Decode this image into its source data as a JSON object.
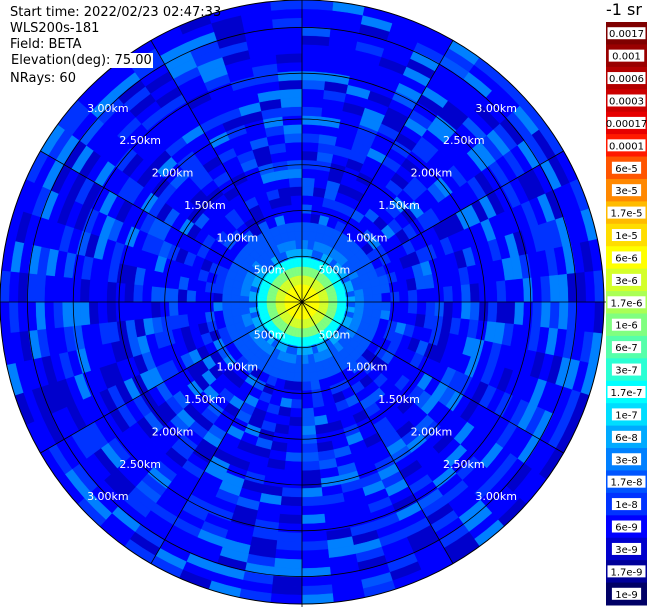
{
  "header": {
    "start_time": "Start time: 2022/02/23 02:47:33",
    "instrument": "WLS200s-181",
    "field": "Field: BETA",
    "elevation": "Elevation(deg): 75.00",
    "nrays": "NRays: 60"
  },
  "colorbar": {
    "unit_title": "-1 sr",
    "labels": [
      "0.0017",
      "0.001",
      "0.0006",
      "0.0003",
      "0.00017",
      "0.0001",
      "6e-5",
      "3e-5",
      "1.7e-5",
      "1e-5",
      "6e-6",
      "3e-6",
      "1.7e-6",
      "1e-6",
      "6e-7",
      "3e-7",
      "1.7e-7",
      "1e-7",
      "6e-8",
      "3e-8",
      "1.7e-8",
      "1e-8",
      "6e-9",
      "3e-9",
      "1.7e-9",
      "1e-9"
    ],
    "colors": [
      "#7f0000",
      "#990000",
      "#b30000",
      "#cc0000",
      "#e60000",
      "#ff1a00",
      "#ff5500",
      "#ff8800",
      "#ffbb00",
      "#ffdd00",
      "#ffff00",
      "#d4ff2a",
      "#aaff55",
      "#80ff80",
      "#55ffaa",
      "#2affd4",
      "#00ffff",
      "#00ddff",
      "#00aaff",
      "#0080ff",
      "#0055ff",
      "#0033ff",
      "#0000ff",
      "#0000cc",
      "#000099",
      "#000066"
    ]
  },
  "chart_data": {
    "type": "heatmap",
    "projection": "polar PPI",
    "range_rings_km": [
      0.5,
      1.0,
      1.5,
      2.0,
      2.5,
      3.0
    ],
    "ring_labels": [
      "500m",
      "1.00km",
      "1.50km",
      "2.00km",
      "2.50km",
      "3.00km"
    ],
    "azimuth_spokes_deg": [
      0,
      30,
      60,
      90,
      120,
      150,
      180,
      210,
      240,
      270,
      300,
      330
    ],
    "num_rays": 60,
    "max_range_km": 3.3,
    "value_profile": {
      "range_km": [
        0.0,
        0.15,
        0.25,
        0.35,
        0.45,
        0.55,
        0.7,
        1.0,
        3.3
      ],
      "color": [
        "#ffff00",
        "#d4ff2a",
        "#80ff80",
        "#00ffff",
        "#00aaff",
        "#0080ff",
        "#0055ff",
        "#0033ff",
        "#0033ff"
      ]
    },
    "far_field_colors": [
      "#0000ff",
      "#0000cc",
      "#0033ff",
      "#0055ff",
      "#0080ff",
      "#00aaff"
    ]
  }
}
